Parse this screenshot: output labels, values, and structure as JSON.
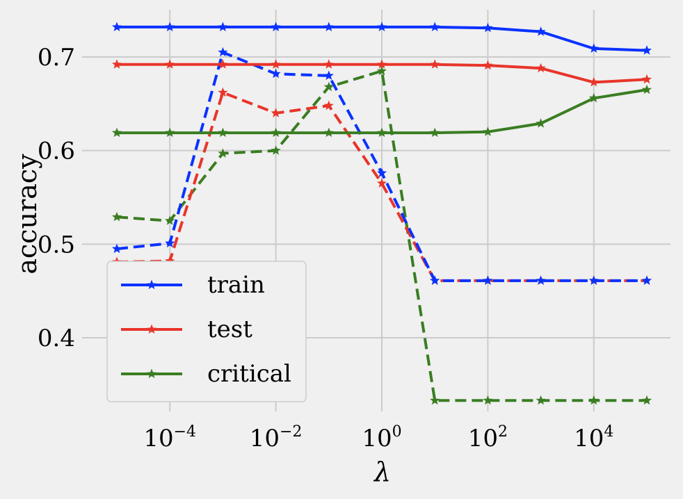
{
  "chart_data": {
    "type": "line",
    "xlabel": "λ",
    "ylabel": "accuracy",
    "x_scale": "log",
    "x": [
      1e-05,
      0.0001,
      0.001,
      0.01,
      0.1,
      1,
      10,
      100,
      1000,
      10000,
      100000
    ],
    "xlim": [
      1e-05,
      100000.0
    ],
    "ylim": [
      0.33,
      0.73
    ],
    "x_ticks": [
      {
        "base": "10",
        "exp": "−4",
        "value": 0.0001
      },
      {
        "base": "10",
        "exp": "−2",
        "value": 0.01
      },
      {
        "base": "10",
        "exp": "0",
        "value": 1
      },
      {
        "base": "10",
        "exp": "2",
        "value": 100
      },
      {
        "base": "10",
        "exp": "4",
        "value": 10000
      }
    ],
    "y_ticks": [
      "0.4",
      "0.5",
      "0.6",
      "0.7"
    ],
    "grid": true,
    "legend_position": "lower-left",
    "series": [
      {
        "name": "train",
        "color": "#0a32ff",
        "dash": "solid",
        "values": [
          0.732,
          0.732,
          0.732,
          0.732,
          0.732,
          0.732,
          0.732,
          0.731,
          0.727,
          0.709,
          0.707
        ]
      },
      {
        "name": "test",
        "color": "#e8352a",
        "dash": "solid",
        "values": [
          0.692,
          0.692,
          0.692,
          0.692,
          0.692,
          0.692,
          0.692,
          0.691,
          0.688,
          0.673,
          0.676
        ]
      },
      {
        "name": "critical",
        "color": "#3a7d22",
        "dash": "solid",
        "values": [
          0.619,
          0.619,
          0.619,
          0.619,
          0.619,
          0.619,
          0.619,
          0.62,
          0.629,
          0.656,
          0.665
        ]
      },
      {
        "color": "#0a32ff",
        "dash": "dashed",
        "values": [
          0.495,
          0.501,
          0.705,
          0.682,
          0.68,
          0.576,
          0.461,
          0.461,
          0.461,
          0.461,
          0.461
        ]
      },
      {
        "color": "#e8352a",
        "dash": "dashed",
        "values": [
          0.481,
          0.482,
          0.662,
          0.64,
          0.648,
          0.565,
          0.461,
          0.461,
          0.461,
          0.461,
          0.461
        ]
      },
      {
        "color": "#3a7d22",
        "dash": "dashed",
        "values": [
          0.529,
          0.525,
          0.597,
          0.6,
          0.668,
          0.685,
          0.333,
          0.333,
          0.333,
          0.333,
          0.333
        ]
      }
    ]
  }
}
